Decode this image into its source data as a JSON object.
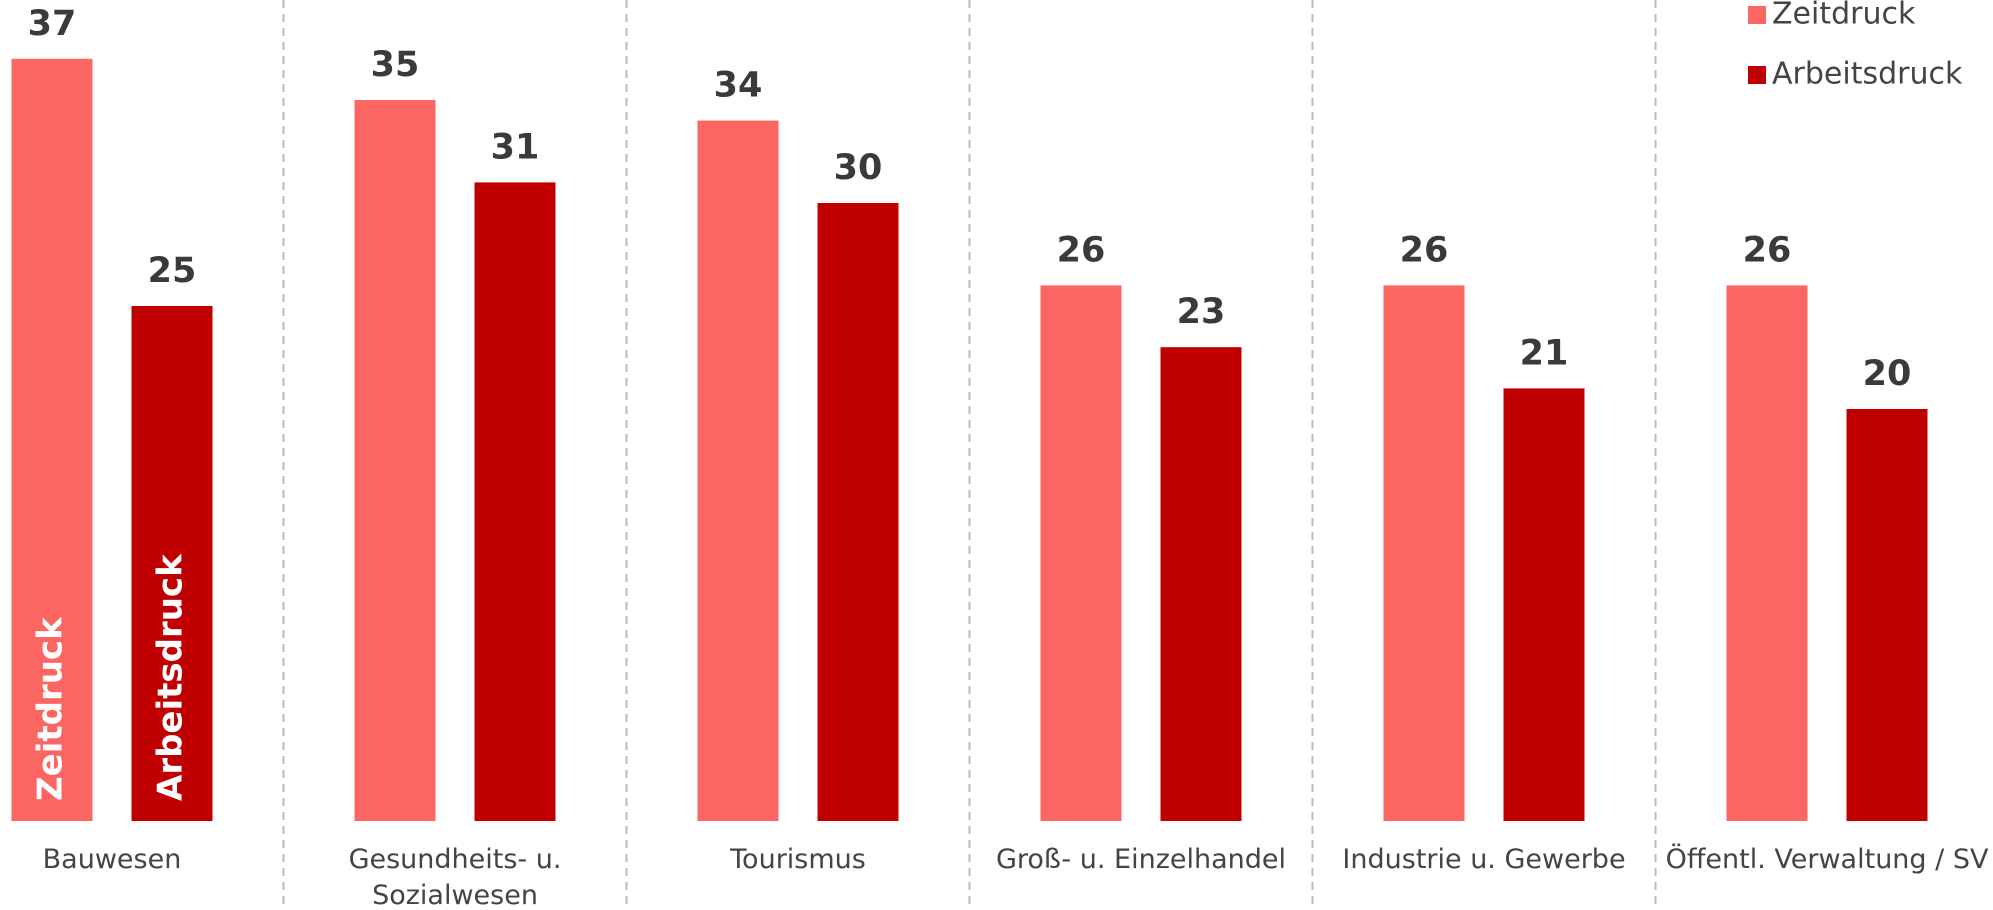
{
  "chart_data": {
    "type": "bar",
    "categories": [
      "Bauwesen",
      "Gesundheits- u. Sozialwesen",
      "Tourismus",
      "Groß- u. Einzelhandel",
      "Industrie u. Gewerbe",
      "Öffentl. Verwaltung / SV"
    ],
    "series": [
      {
        "name": "Zeitdruck",
        "color": "#fb6663",
        "values": [
          37,
          35,
          34,
          26,
          26,
          26
        ]
      },
      {
        "name": "Arbeitsdruck",
        "color": "#c00000",
        "values": [
          25,
          31,
          30,
          23,
          21,
          20
        ]
      }
    ],
    "legend": "top-right"
  }
}
